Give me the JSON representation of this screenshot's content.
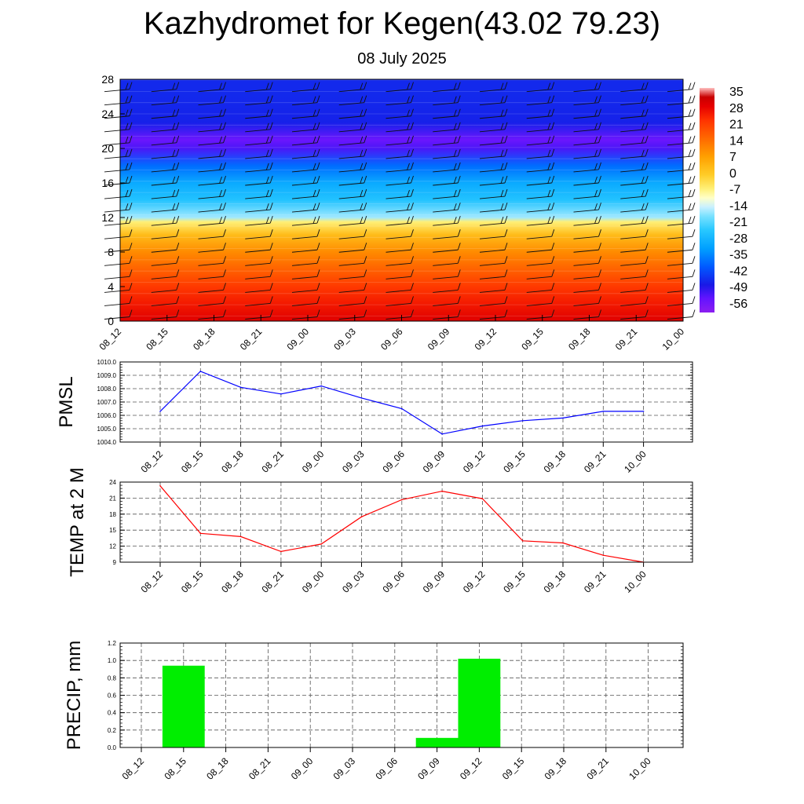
{
  "title": "Kazhydromet for Kegen(43.02 79.23)",
  "subtitle": "08 July 2025",
  "time_labels": [
    "08_12",
    "08_15",
    "08_18",
    "08_21",
    "09_00",
    "09_03",
    "09_06",
    "09_09",
    "09_12",
    "09_15",
    "09_18",
    "09_21",
    "10_00"
  ],
  "colors": {
    "pmsl_line": "#0000ff",
    "temp_line": "#ff0000",
    "precip_bar": "#00ee00"
  },
  "chart_data": [
    {
      "type": "heatmap",
      "name": "vertical-section",
      "x": [
        "08_12",
        "08_15",
        "08_18",
        "08_21",
        "09_00",
        "09_03",
        "09_06",
        "09_09",
        "09_12",
        "09_15",
        "09_18",
        "09_21",
        "10_00"
      ],
      "ylim": [
        0,
        28
      ],
      "yticks": [
        0,
        4,
        8,
        12,
        16,
        20,
        24,
        28
      ],
      "colorbar_labels": [
        "35",
        "28",
        "21",
        "14",
        "7",
        "0",
        "-7",
        "-14",
        "-21",
        "-28",
        "-35",
        "-42",
        "-49",
        "-56"
      ],
      "colorbar_range": [
        -60,
        38
      ],
      "profile_levels": [
        0,
        2,
        4,
        6,
        8,
        10,
        11.5,
        12,
        14,
        16,
        18,
        20,
        21,
        23,
        26,
        28
      ],
      "profile_values": [
        31,
        27,
        23,
        17,
        11,
        3,
        -6,
        -16,
        -25,
        -30,
        -38,
        -52,
        -55,
        -47,
        -46,
        -46
      ],
      "wind_barbs": true,
      "grid": false
    },
    {
      "type": "line",
      "name": "pmsl",
      "ylabel": "PMSL",
      "x": [
        "08_12",
        "08_15",
        "08_18",
        "08_21",
        "09_00",
        "09_03",
        "09_06",
        "09_09",
        "09_12",
        "09_15",
        "09_18",
        "09_21",
        "10_00"
      ],
      "values": [
        1006.3,
        1009.3,
        1008.1,
        1007.6,
        1008.2,
        1007.3,
        1006.5,
        1004.6,
        1005.2,
        1005.6,
        1005.8,
        1006.3,
        1006.3
      ],
      "ylim": [
        1004.0,
        1010.0
      ],
      "yticks": [
        "1004.0",
        "1005.0",
        "1006.0",
        "1007.0",
        "1008.0",
        "1009.0",
        "1010.0"
      ],
      "grid": true
    },
    {
      "type": "line",
      "name": "temp2m",
      "ylabel": "TEMP at 2 M",
      "x": [
        "08_12",
        "08_15",
        "08_18",
        "08_21",
        "09_00",
        "09_03",
        "09_06",
        "09_09",
        "09_12",
        "09_15",
        "09_18",
        "09_21",
        "10_00"
      ],
      "values": [
        23.3,
        14.4,
        13.8,
        11.0,
        12.4,
        17.5,
        20.7,
        22.3,
        20.9,
        13.0,
        12.6,
        10.3,
        9.0
      ],
      "ylim": [
        9,
        24
      ],
      "yticks": [
        "9",
        "12",
        "15",
        "18",
        "21",
        "24"
      ],
      "grid": true
    },
    {
      "type": "bar",
      "name": "precip",
      "ylabel": "PRECIP, mm",
      "x": [
        "08_12",
        "08_15",
        "08_18",
        "08_21",
        "09_00",
        "09_03",
        "09_06",
        "09_09",
        "09_12",
        "09_15",
        "09_18",
        "09_21",
        "10_00"
      ],
      "values": [
        0,
        0.94,
        0,
        0,
        0,
        0,
        0,
        0.11,
        1.02,
        0,
        0,
        0,
        0
      ],
      "ylim": [
        0,
        1.2
      ],
      "yticks": [
        "0.0",
        "0.2",
        "0.4",
        "0.6",
        "0.8",
        "1.0",
        "1.2"
      ],
      "grid": true
    }
  ]
}
